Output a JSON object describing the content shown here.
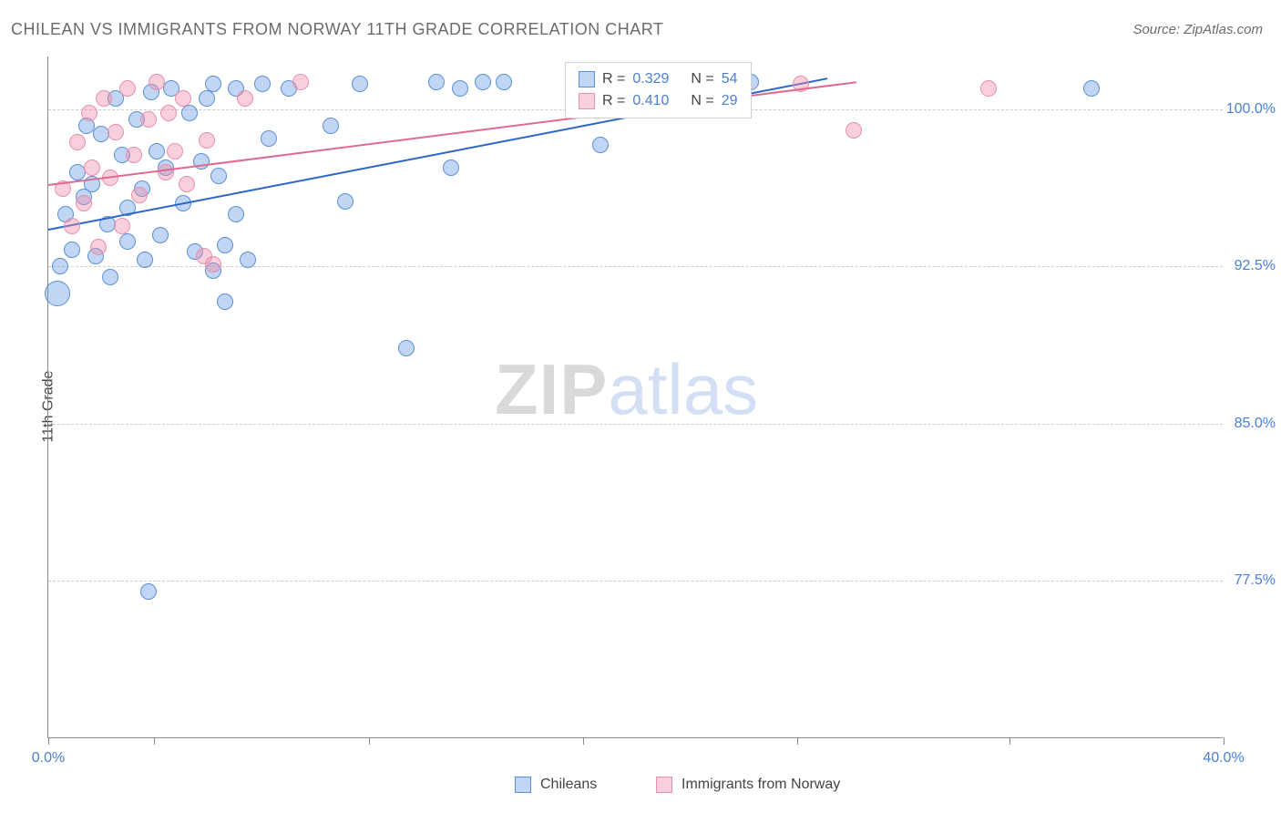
{
  "title": "CHILEAN VS IMMIGRANTS FROM NORWAY 11TH GRADE CORRELATION CHART",
  "source_label": "Source: ZipAtlas.com",
  "ylabel": "11th Grade",
  "watermark": {
    "zip": "ZIP",
    "atlas": "atlas"
  },
  "chart": {
    "type": "scatter",
    "background_color": "#ffffff",
    "grid_color": "#cccccc",
    "axis_color": "#888888",
    "label_color": "#4a7fd6",
    "title_color": "#6b6b6b",
    "title_fontsize": 18,
    "label_fontsize": 16,
    "xlim": [
      0,
      40
    ],
    "ylim": [
      70,
      102.5
    ],
    "xtick_positions": [
      0,
      3.6,
      10.9,
      18.2,
      25.5,
      32.7,
      40
    ],
    "xtick_labels_shown": {
      "0": "0.0%",
      "40": "40.0%"
    },
    "ytick_positions": [
      77.5,
      85.0,
      92.5,
      100.0
    ],
    "ytick_labels": [
      "77.5%",
      "85.0%",
      "92.5%",
      "100.0%"
    ],
    "series": [
      {
        "key": "chileans",
        "label": "Chileans",
        "fill_color": "rgba(117,163,230,0.45)",
        "stroke_color": "#5b8fd6",
        "trend_color": "#2a66c8",
        "marker_radius": 9,
        "trend": {
          "x1": 0,
          "y1": 94.3,
          "x2": 26.5,
          "y2": 101.5
        },
        "stats": {
          "R": "0.329",
          "N": "54"
        },
        "points": [
          {
            "x": 0.3,
            "y": 91.2,
            "r": 14
          },
          {
            "x": 0.4,
            "y": 92.5
          },
          {
            "x": 0.6,
            "y": 95.0
          },
          {
            "x": 0.8,
            "y": 93.3
          },
          {
            "x": 1.0,
            "y": 97.0
          },
          {
            "x": 1.2,
            "y": 95.8
          },
          {
            "x": 1.3,
            "y": 99.2
          },
          {
            "x": 1.5,
            "y": 96.4
          },
          {
            "x": 1.6,
            "y": 93.0
          },
          {
            "x": 1.8,
            "y": 98.8
          },
          {
            "x": 2.0,
            "y": 94.5
          },
          {
            "x": 2.1,
            "y": 92.0
          },
          {
            "x": 2.3,
            "y": 100.5
          },
          {
            "x": 2.5,
            "y": 97.8
          },
          {
            "x": 2.7,
            "y": 95.3
          },
          {
            "x": 2.7,
            "y": 93.7
          },
          {
            "x": 3.0,
            "y": 99.5
          },
          {
            "x": 3.2,
            "y": 96.2
          },
          {
            "x": 3.3,
            "y": 92.8
          },
          {
            "x": 3.5,
            "y": 100.8
          },
          {
            "x": 3.7,
            "y": 98.0
          },
          {
            "x": 3.8,
            "y": 94.0
          },
          {
            "x": 3.4,
            "y": 77.0
          },
          {
            "x": 4.0,
            "y": 97.2
          },
          {
            "x": 4.2,
            "y": 101.0
          },
          {
            "x": 4.6,
            "y": 95.5
          },
          {
            "x": 4.8,
            "y": 99.8
          },
          {
            "x": 5.0,
            "y": 93.2
          },
          {
            "x": 5.2,
            "y": 97.5
          },
          {
            "x": 5.4,
            "y": 100.5
          },
          {
            "x": 5.6,
            "y": 92.3
          },
          {
            "x": 5.6,
            "y": 101.2
          },
          {
            "x": 5.8,
            "y": 96.8
          },
          {
            "x": 6.0,
            "y": 93.5
          },
          {
            "x": 6.0,
            "y": 90.8
          },
          {
            "x": 6.4,
            "y": 95.0
          },
          {
            "x": 6.4,
            "y": 101.0
          },
          {
            "x": 6.8,
            "y": 92.8
          },
          {
            "x": 7.3,
            "y": 101.2
          },
          {
            "x": 7.5,
            "y": 98.6
          },
          {
            "x": 8.2,
            "y": 101.0
          },
          {
            "x": 9.6,
            "y": 99.2
          },
          {
            "x": 10.1,
            "y": 95.6
          },
          {
            "x": 10.6,
            "y": 101.2
          },
          {
            "x": 12.2,
            "y": 88.6
          },
          {
            "x": 13.2,
            "y": 101.3
          },
          {
            "x": 13.7,
            "y": 97.2
          },
          {
            "x": 14.0,
            "y": 101.0
          },
          {
            "x": 14.8,
            "y": 101.3
          },
          {
            "x": 15.5,
            "y": 101.3
          },
          {
            "x": 18.8,
            "y": 98.3
          },
          {
            "x": 22.6,
            "y": 101.0
          },
          {
            "x": 23.9,
            "y": 101.3
          },
          {
            "x": 35.5,
            "y": 101.0
          }
        ]
      },
      {
        "key": "norway",
        "label": "Immigrants from Norway",
        "fill_color": "rgba(238,140,170,0.42)",
        "stroke_color": "#e890ac",
        "trend_color": "#e06a94",
        "marker_radius": 9,
        "trend": {
          "x1": 0,
          "y1": 96.4,
          "x2": 27.5,
          "y2": 101.3
        },
        "stats": {
          "R": "0.410",
          "N": "29"
        },
        "points": [
          {
            "x": 0.5,
            "y": 96.2
          },
          {
            "x": 0.8,
            "y": 94.4
          },
          {
            "x": 1.0,
            "y": 98.4
          },
          {
            "x": 1.2,
            "y": 95.5
          },
          {
            "x": 1.4,
            "y": 99.8
          },
          {
            "x": 1.5,
            "y": 97.2
          },
          {
            "x": 1.7,
            "y": 93.4
          },
          {
            "x": 1.9,
            "y": 100.5
          },
          {
            "x": 2.1,
            "y": 96.7
          },
          {
            "x": 2.3,
            "y": 98.9
          },
          {
            "x": 2.5,
            "y": 94.4
          },
          {
            "x": 2.7,
            "y": 101.0
          },
          {
            "x": 2.9,
            "y": 97.8
          },
          {
            "x": 3.1,
            "y": 95.9
          },
          {
            "x": 3.4,
            "y": 99.5
          },
          {
            "x": 3.7,
            "y": 101.3
          },
          {
            "x": 4.0,
            "y": 97.0
          },
          {
            "x": 4.1,
            "y": 99.8
          },
          {
            "x": 4.3,
            "y": 98.0
          },
          {
            "x": 4.6,
            "y": 100.5
          },
          {
            "x": 4.7,
            "y": 96.4
          },
          {
            "x": 5.3,
            "y": 93.0
          },
          {
            "x": 5.4,
            "y": 98.5
          },
          {
            "x": 5.6,
            "y": 92.6
          },
          {
            "x": 6.7,
            "y": 100.5
          },
          {
            "x": 8.6,
            "y": 101.3
          },
          {
            "x": 25.6,
            "y": 101.2
          },
          {
            "x": 27.4,
            "y": 99.0
          },
          {
            "x": 32.0,
            "y": 101.0
          }
        ]
      }
    ],
    "stats_legend": {
      "R_label": "R =",
      "N_label": "N =",
      "value_color": "#4a7fd6",
      "text_color": "#444444"
    }
  }
}
